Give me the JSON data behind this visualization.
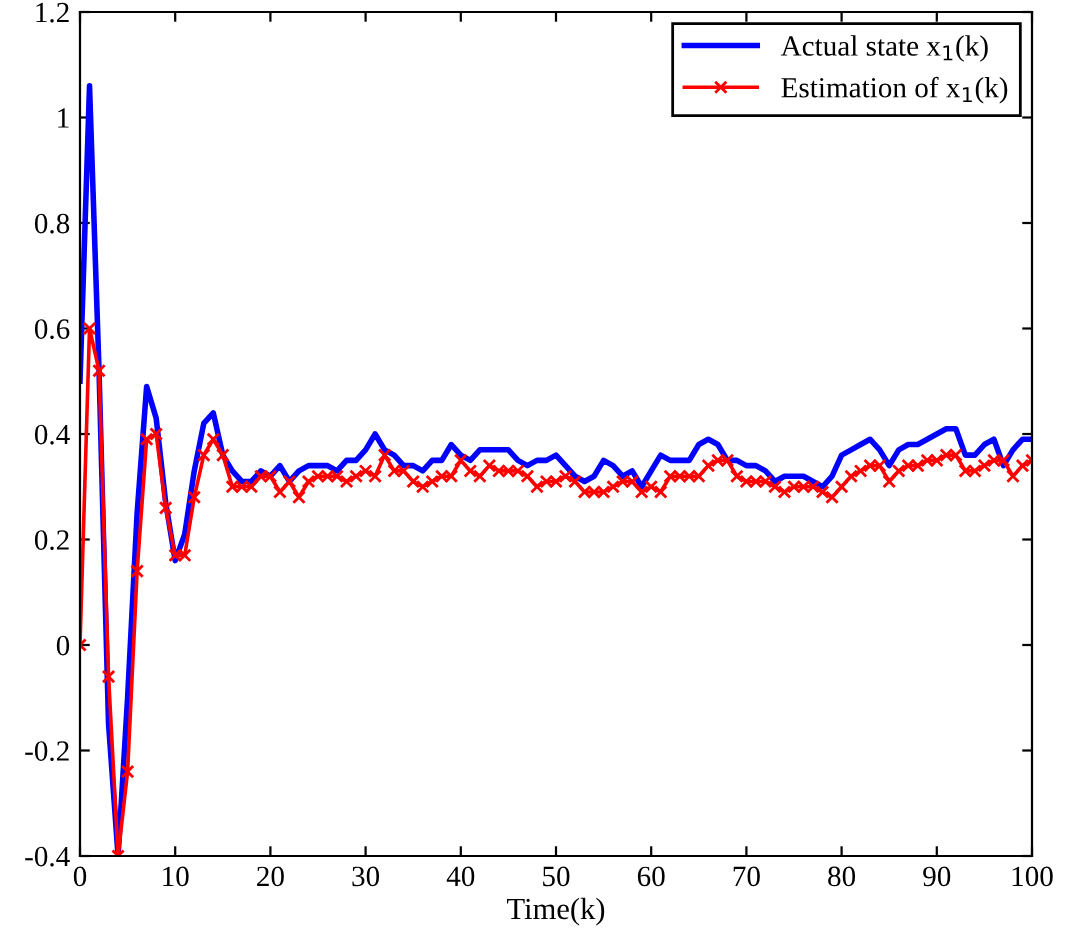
{
  "chart_data": {
    "type": "line",
    "xlabel": "Time(k)",
    "x": [
      0,
      1,
      2,
      3,
      4,
      5,
      6,
      7,
      8,
      9,
      10,
      11,
      12,
      13,
      14,
      15,
      16,
      17,
      18,
      19,
      20,
      21,
      22,
      23,
      24,
      25,
      26,
      27,
      28,
      29,
      30,
      31,
      32,
      33,
      34,
      35,
      36,
      37,
      38,
      39,
      40,
      41,
      42,
      43,
      44,
      45,
      46,
      47,
      48,
      49,
      50,
      51,
      52,
      53,
      54,
      55,
      56,
      57,
      58,
      59,
      60,
      61,
      62,
      63,
      64,
      65,
      66,
      67,
      68,
      69,
      70,
      71,
      72,
      73,
      74,
      75,
      76,
      77,
      78,
      79,
      80,
      81,
      82,
      83,
      84,
      85,
      86,
      87,
      88,
      89,
      90,
      91,
      92,
      93,
      94,
      95,
      96,
      97,
      98,
      99,
      100
    ],
    "series": [
      {
        "name": "Actual state x$_{1}$(k)",
        "color": "#0000ff",
        "marker": "none",
        "values": [
          0.5,
          1.06,
          0.52,
          -0.15,
          -0.4,
          -0.1,
          0.25,
          0.49,
          0.43,
          0.27,
          0.16,
          0.21,
          0.33,
          0.42,
          0.44,
          0.36,
          0.33,
          0.31,
          0.31,
          0.33,
          0.32,
          0.34,
          0.31,
          0.33,
          0.34,
          0.34,
          0.34,
          0.33,
          0.35,
          0.35,
          0.37,
          0.4,
          0.37,
          0.36,
          0.34,
          0.34,
          0.33,
          0.35,
          0.35,
          0.38,
          0.36,
          0.35,
          0.37,
          0.37,
          0.37,
          0.37,
          0.35,
          0.34,
          0.35,
          0.35,
          0.36,
          0.34,
          0.32,
          0.31,
          0.32,
          0.35,
          0.34,
          0.32,
          0.33,
          0.3,
          0.33,
          0.36,
          0.35,
          0.35,
          0.35,
          0.38,
          0.39,
          0.38,
          0.35,
          0.35,
          0.34,
          0.34,
          0.33,
          0.31,
          0.32,
          0.32,
          0.32,
          0.31,
          0.3,
          0.32,
          0.36,
          0.37,
          0.38,
          0.39,
          0.37,
          0.34,
          0.37,
          0.38,
          0.38,
          0.39,
          0.4,
          0.41,
          0.41,
          0.36,
          0.36,
          0.38,
          0.39,
          0.34,
          0.37,
          0.39,
          0.39
        ]
      },
      {
        "name": "Estimation of x$_{1}$(k)",
        "color": "#ff0000",
        "marker": "cross",
        "values": [
          0,
          0.6,
          0.52,
          -0.06,
          -0.4,
          -0.24,
          0.14,
          0.39,
          0.4,
          0.26,
          0.17,
          0.17,
          0.28,
          0.36,
          0.39,
          0.36,
          0.3,
          0.3,
          0.3,
          0.32,
          0.32,
          0.29,
          0.31,
          0.28,
          0.31,
          0.32,
          0.32,
          0.32,
          0.31,
          0.32,
          0.33,
          0.32,
          0.36,
          0.33,
          0.33,
          0.31,
          0.3,
          0.31,
          0.32,
          0.32,
          0.35,
          0.33,
          0.32,
          0.34,
          0.33,
          0.33,
          0.33,
          0.32,
          0.3,
          0.31,
          0.31,
          0.32,
          0.31,
          0.29,
          0.29,
          0.29,
          0.3,
          0.31,
          0.31,
          0.29,
          0.3,
          0.29,
          0.32,
          0.32,
          0.32,
          0.32,
          0.34,
          0.35,
          0.35,
          0.32,
          0.31,
          0.31,
          0.31,
          0.3,
          0.29,
          0.3,
          0.3,
          0.3,
          0.29,
          0.28,
          0.3,
          0.32,
          0.33,
          0.34,
          0.34,
          0.31,
          0.33,
          0.34,
          0.34,
          0.35,
          0.35,
          0.36,
          0.36,
          0.33,
          0.33,
          0.34,
          0.35,
          0.35,
          0.32,
          0.34,
          0.35
        ]
      }
    ],
    "xlim": [
      0,
      100
    ],
    "xticks": [
      0,
      10,
      20,
      30,
      40,
      50,
      60,
      70,
      80,
      90,
      100
    ],
    "ylim": [
      -0.4,
      1.2
    ],
    "yticks": [
      -0.4,
      -0.2,
      0,
      0.2,
      0.4,
      0.6,
      0.8,
      1,
      1.2
    ],
    "grid": false,
    "legend": "top right",
    "line_style": "solid"
  }
}
